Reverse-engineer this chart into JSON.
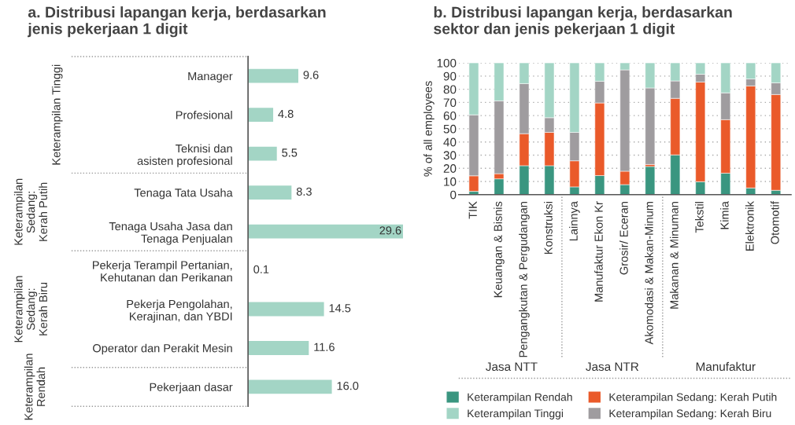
{
  "chart_data": [
    {
      "type": "bar",
      "orientation": "horizontal",
      "title": "a. Distribusi lapangan kerja, berdasarkan\njenis pekerjaan 1 digit",
      "categories": [
        "Manager",
        "Profesional",
        "Teknisi dan\nasisten profesional",
        "Tenaga Tata Usaha",
        "Tenaga Usaha Jasa dan\nTenaga Penjualan",
        "Pekerja Terampil Pertanian,\nKehutanan dan Perikanan",
        "Pekerja Pengolahan,\nKerajinan, dan YBDI",
        "Operator dan Perakit Mesin",
        "Pekerjaan dasar"
      ],
      "values": [
        9.6,
        4.8,
        5.5,
        8.3,
        29.6,
        0.1,
        14.5,
        11.6,
        16.0
      ],
      "value_labels": [
        "9.6",
        "4.8",
        "5.5",
        "8.3",
        "29.6",
        "0.1",
        "14.5",
        "11.6",
        "16.0"
      ],
      "color": "#a3d5c5",
      "annotations": [
        "Keterampilan Tinggi",
        "Keterampilan\nSedang:\nKerah Putih",
        "Keterampilan\nSedang:\nKerah Biru",
        "Keterampilan\nRendah"
      ]
    },
    {
      "type": "bar",
      "stacked": true,
      "title": "b. Distribusi lapangan kerja, berdasarkan\nsektor dan jenis pekerjaan 1 digit",
      "ylabel": "% of all employees",
      "categories": [
        "TIK",
        "Keuangan & Bisnis",
        "Pengangkutan & Pergudangan",
        "Konstruksi",
        "Lainnya",
        "Manufaktur Ekon Kr",
        "Grosir/ Eceran",
        "Akomodasi & Makan-Minum",
        "Makanan & Minuman",
        "Tekstil",
        "Kimia",
        "Elektronik",
        "Otomotif"
      ],
      "series": [
        {
          "name": "Keterampilan Rendah",
          "color": "#3a9680",
          "values": [
            2.5,
            12,
            22,
            22,
            5.9,
            14.5,
            7.6,
            21.4,
            30.2,
            9.8,
            16.3,
            5.1,
            3.3
          ]
        },
        {
          "name": "Keterampilan Sedang: Kerah Putih",
          "color": "#ea5a2a",
          "values": [
            11.8,
            3.9,
            24.3,
            25.3,
            19.8,
            55.1,
            10.2,
            1.5,
            42.9,
            75.7,
            40.6,
            77.4,
            72.7
          ]
        },
        {
          "name": "Keterampilan Sedang: Kerah Biru",
          "color": "#9f9c9f",
          "values": [
            46.3,
            55.3,
            38,
            11.1,
            21.6,
            16.5,
            76.9,
            58.1,
            13.2,
            5.9,
            20.4,
            5.3,
            8.9
          ]
        },
        {
          "name": "Keterampilan Tinggi",
          "color": "#a3d5c5",
          "values": [
            39.4,
            28.8,
            15.7,
            41.6,
            52.7,
            13.9,
            5.3,
            19,
            13.7,
            8.6,
            22.7,
            12.2,
            15.1
          ]
        }
      ],
      "ylim": [
        0,
        100
      ],
      "yticks": [
        0,
        10,
        20,
        30,
        40,
        50,
        60,
        70,
        80,
        90,
        100
      ],
      "grid": "y",
      "legend": "bottom",
      "annotations": [
        "Jasa NTT",
        "Jasa NTR",
        "Manufaktur"
      ]
    }
  ]
}
